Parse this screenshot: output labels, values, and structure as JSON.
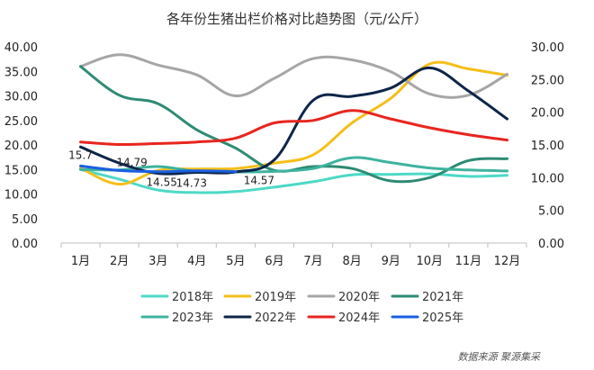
{
  "chart_data": {
    "type": "line",
    "title": "各年份生猪出栏价格对比趋势图（元/公斤）",
    "source": "数据来源   聚源集采",
    "categories": [
      "1月",
      "2月",
      "3月",
      "4月",
      "5月",
      "6月",
      "7月",
      "8月",
      "9月",
      "10月",
      "11月",
      "12月"
    ],
    "y_left": {
      "ticks": [
        "0.00",
        "5.00",
        "10.00",
        "15.00",
        "20.00",
        "25.00",
        "30.00",
        "35.00",
        "40.00"
      ],
      "ylim": [
        0,
        40
      ]
    },
    "y_right": {
      "ticks": [
        "0.00",
        "5.00",
        "10.00",
        "15.00",
        "20.00",
        "25.00",
        "30.00"
      ],
      "ylim": [
        0,
        30
      ]
    },
    "grid": false,
    "legend_position": "bottom",
    "series": [
      {
        "name": "2018年",
        "color": "#4dd9c6",
        "axis": "left",
        "values": [
          15.0,
          13.0,
          10.8,
          10.3,
          10.5,
          11.4,
          12.5,
          13.9,
          14.0,
          14.1,
          13.6,
          13.8
        ]
      },
      {
        "name": "2019年",
        "color": "#f5bf1a",
        "axis": "left",
        "values": [
          15.3,
          12.0,
          14.8,
          15.1,
          15.2,
          16.3,
          18.0,
          24.5,
          29.5,
          36.5,
          35.5,
          34.2
        ]
      },
      {
        "name": "2020年",
        "color": "#a6a6a6",
        "axis": "right",
        "values": [
          27.0,
          28.8,
          27.2,
          25.7,
          22.5,
          25.2,
          28.2,
          28.0,
          26.2,
          22.8,
          22.6,
          25.8
        ]
      },
      {
        "name": "2021年",
        "color": "#2e8b74",
        "axis": "right",
        "values": [
          27.0,
          22.6,
          21.3,
          17.3,
          14.5,
          11.1,
          11.7,
          11.4,
          9.5,
          10.0,
          12.6,
          12.9
        ]
      },
      {
        "name": "2023年",
        "color": "#3fb39e",
        "axis": "left",
        "values": [
          15.0,
          14.9,
          15.6,
          14.6,
          14.5,
          14.6,
          15.2,
          17.4,
          16.4,
          15.3,
          14.9,
          14.7
        ]
      },
      {
        "name": "2022年",
        "color": "#0e2549",
        "axis": "left",
        "values": [
          19.6,
          16.3,
          14.2,
          14.4,
          14.5,
          17.0,
          29.1,
          29.9,
          31.6,
          35.7,
          31.0,
          25.3
        ]
      },
      {
        "name": "2024年",
        "color": "#e8251f",
        "axis": "left",
        "values": [
          20.6,
          20.1,
          20.3,
          20.6,
          21.4,
          24.5,
          25.0,
          27.0,
          25.3,
          23.5,
          22.1,
          21.0
        ]
      },
      {
        "name": "2025年",
        "color": "#1a5fe0",
        "axis": "left",
        "values": [
          15.7,
          14.79,
          14.55,
          14.73,
          14.57,
          null,
          null,
          null,
          null,
          null,
          null,
          null
        ]
      }
    ],
    "data_labels": [
      {
        "series": "2025年",
        "index": 0,
        "text": "15.7"
      },
      {
        "series": "2025年",
        "index": 1,
        "text": "14.79"
      },
      {
        "series": "2025年",
        "index": 2,
        "text": "14.55"
      },
      {
        "series": "2025年",
        "index": 3,
        "text": "14.73"
      },
      {
        "series": "2025年",
        "index": 4,
        "text": "14.57"
      }
    ],
    "legend_rows": [
      [
        "2018年",
        "2019年",
        "2020年",
        "2021年"
      ],
      [
        "2023年",
        "2022年",
        "2024年",
        "2025年"
      ]
    ]
  }
}
